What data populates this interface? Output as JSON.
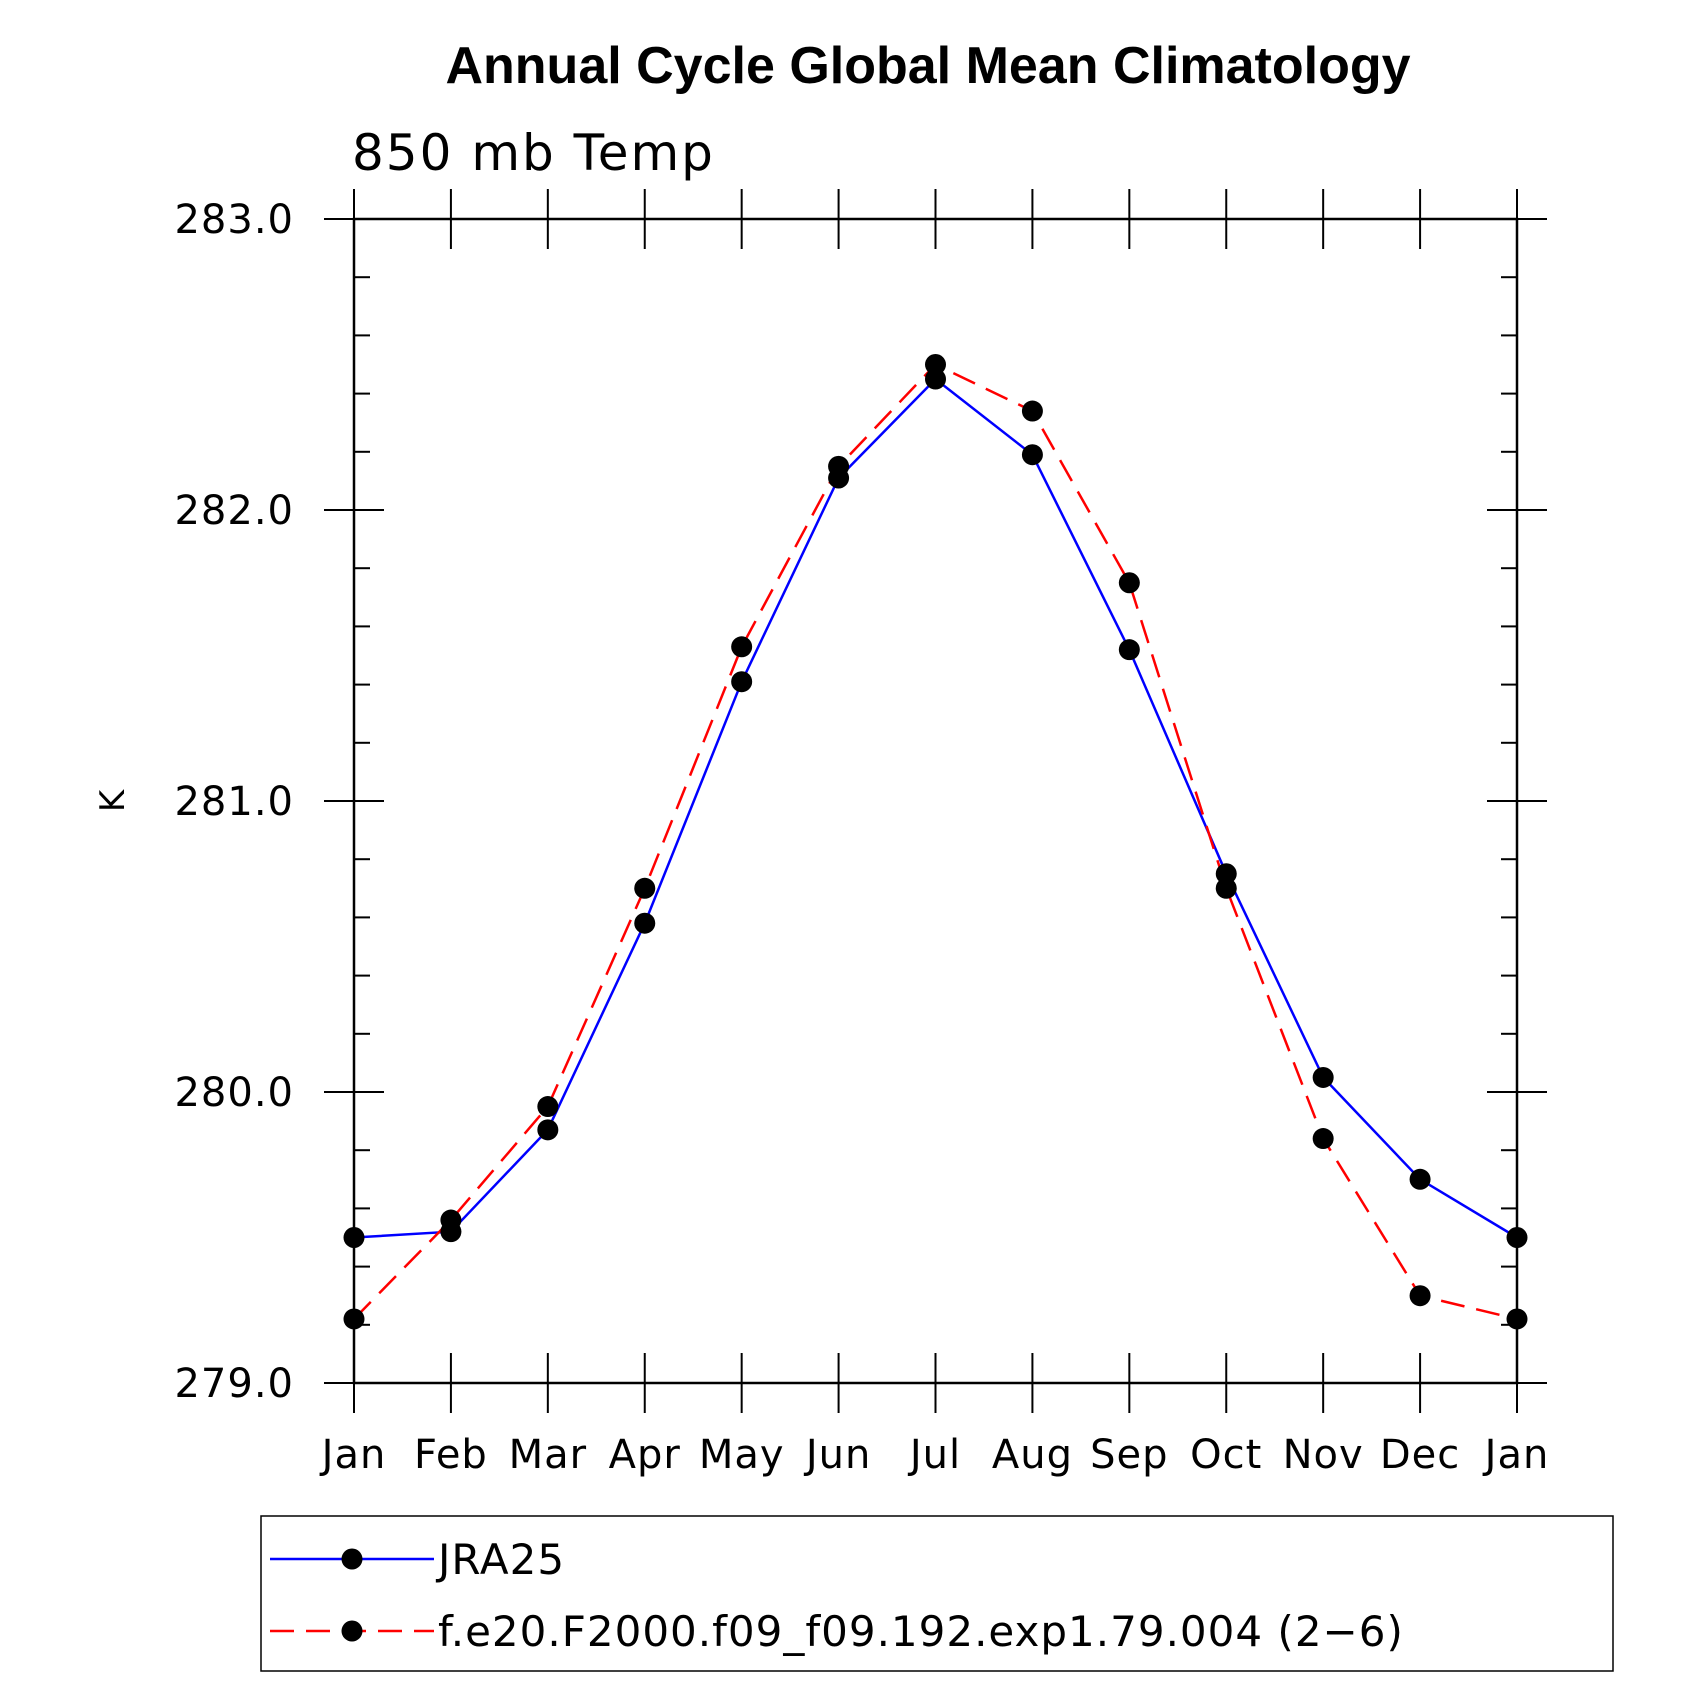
{
  "chart_data": {
    "type": "line",
    "title": "Annual Cycle Global Mean Climatology",
    "subtitle": "850 mb Temp",
    "ylabel": "K",
    "xlabel": "",
    "categories": [
      "Jan",
      "Feb",
      "Mar",
      "Apr",
      "May",
      "Jun",
      "Jul",
      "Aug",
      "Sep",
      "Oct",
      "Nov",
      "Dec",
      "Jan"
    ],
    "ylim": [
      279.0,
      283.0
    ],
    "yticks": [
      "283.0",
      "282.0",
      "281.0",
      "280.0",
      "279.0"
    ],
    "series": [
      {
        "name": "JRA25",
        "color": "#0000ff",
        "dash": "solid",
        "values": [
          279.5,
          279.52,
          279.87,
          280.58,
          281.41,
          282.11,
          282.45,
          282.19,
          281.52,
          280.75,
          280.05,
          279.7,
          279.5
        ]
      },
      {
        "name": "f.e20.F2000.f09_f09.192.exp1.79.004 (2−6)",
        "color": "#ff0000",
        "dash": "dashed",
        "values": [
          279.22,
          279.56,
          279.95,
          280.7,
          281.53,
          282.15,
          282.5,
          282.34,
          281.75,
          280.7,
          279.84,
          279.3,
          279.22
        ]
      }
    ],
    "grid": false,
    "legend_position": "bottom"
  }
}
